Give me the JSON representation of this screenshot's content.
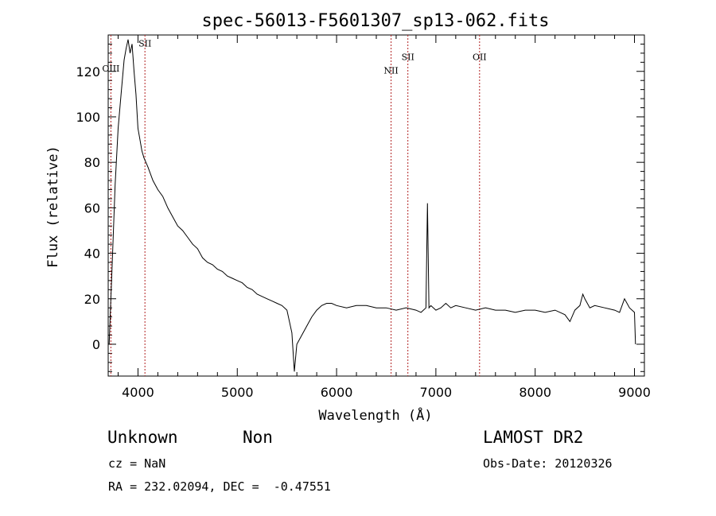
{
  "chart_data": {
    "type": "line",
    "title": "spec-56013-F5601307_sp13-062.fits",
    "xlabel": "Wavelength (Å)",
    "ylabel": "Flux (relative)",
    "xlim": [
      3700,
      9100
    ],
    "ylim": [
      -14,
      136
    ],
    "x_ticks": [
      4000,
      5000,
      6000,
      7000,
      8000,
      9000
    ],
    "y_ticks": [
      0,
      20,
      40,
      60,
      80,
      100,
      120
    ],
    "x_minor_step": 200,
    "y_minor_step": 4,
    "grid": false,
    "line_color": "#000000",
    "marker_color": "#b22222",
    "spectral_lines": [
      {
        "label": "OIII",
        "x": 3727,
        "label_y": 120
      },
      {
        "label": "SII",
        "x": 4070,
        "label_y": 131
      },
      {
        "label": "NII",
        "x": 6549,
        "label_y": 119
      },
      {
        "label": "SII",
        "x": 6718,
        "label_y": 125
      },
      {
        "label": "OII",
        "x": 7440,
        "label_y": 125
      }
    ],
    "series": [
      {
        "x": [
          3710,
          3740,
          3770,
          3800,
          3830,
          3860,
          3880,
          3900,
          3920,
          3940,
          3960,
          3980,
          4000,
          4020,
          4040,
          4060,
          4080,
          4100,
          4150,
          4200,
          4250,
          4300,
          4350,
          4400,
          4450,
          4500,
          4550,
          4600,
          4650,
          4700,
          4750,
          4800,
          4850,
          4900,
          4950,
          5000,
          5050,
          5100,
          5150,
          5200,
          5250,
          5300,
          5350,
          5400,
          5450,
          5500,
          5550,
          5575,
          5600,
          5650,
          5700,
          5750,
          5800,
          5850,
          5900,
          5950,
          6000,
          6100,
          6200,
          6300,
          6400,
          6500,
          6600,
          6700,
          6800,
          6850,
          6900,
          6915,
          6930,
          6950,
          7000,
          7050,
          7100,
          7150,
          7200,
          7300,
          7400,
          7500,
          7600,
          7700,
          7800,
          7900,
          8000,
          8100,
          8200,
          8300,
          8350,
          8400,
          8450,
          8480,
          8500,
          8550,
          8600,
          8700,
          8800,
          8850,
          8900,
          8950,
          9000,
          9010
        ],
        "y": [
          0,
          35,
          70,
          95,
          110,
          125,
          130,
          134,
          128,
          132,
          120,
          110,
          95,
          90,
          85,
          82,
          80,
          78,
          72,
          68,
          65,
          60,
          56,
          52,
          50,
          47,
          44,
          42,
          38,
          36,
          35,
          33,
          32,
          30,
          29,
          28,
          27,
          25,
          24,
          22,
          21,
          20,
          19,
          18,
          17,
          15,
          5,
          -12,
          0,
          4,
          8,
          12,
          15,
          17,
          18,
          18,
          17,
          16,
          17,
          17,
          16,
          16,
          15,
          16,
          15,
          14,
          16,
          62,
          16,
          17,
          15,
          16,
          18,
          16,
          17,
          16,
          15,
          16,
          15,
          15,
          14,
          15,
          15,
          14,
          15,
          13,
          10,
          15,
          17,
          22,
          20,
          16,
          17,
          16,
          15,
          14,
          20,
          16,
          14,
          0
        ]
      }
    ]
  },
  "info": {
    "class_label": "Unknown",
    "subclass_label": "Non",
    "survey": "LAMOST DR2",
    "cz": "cz = NaN",
    "obs_date": "Obs-Date: 20120326",
    "coords": "RA = 232.02094, DEC =  -0.47551"
  }
}
